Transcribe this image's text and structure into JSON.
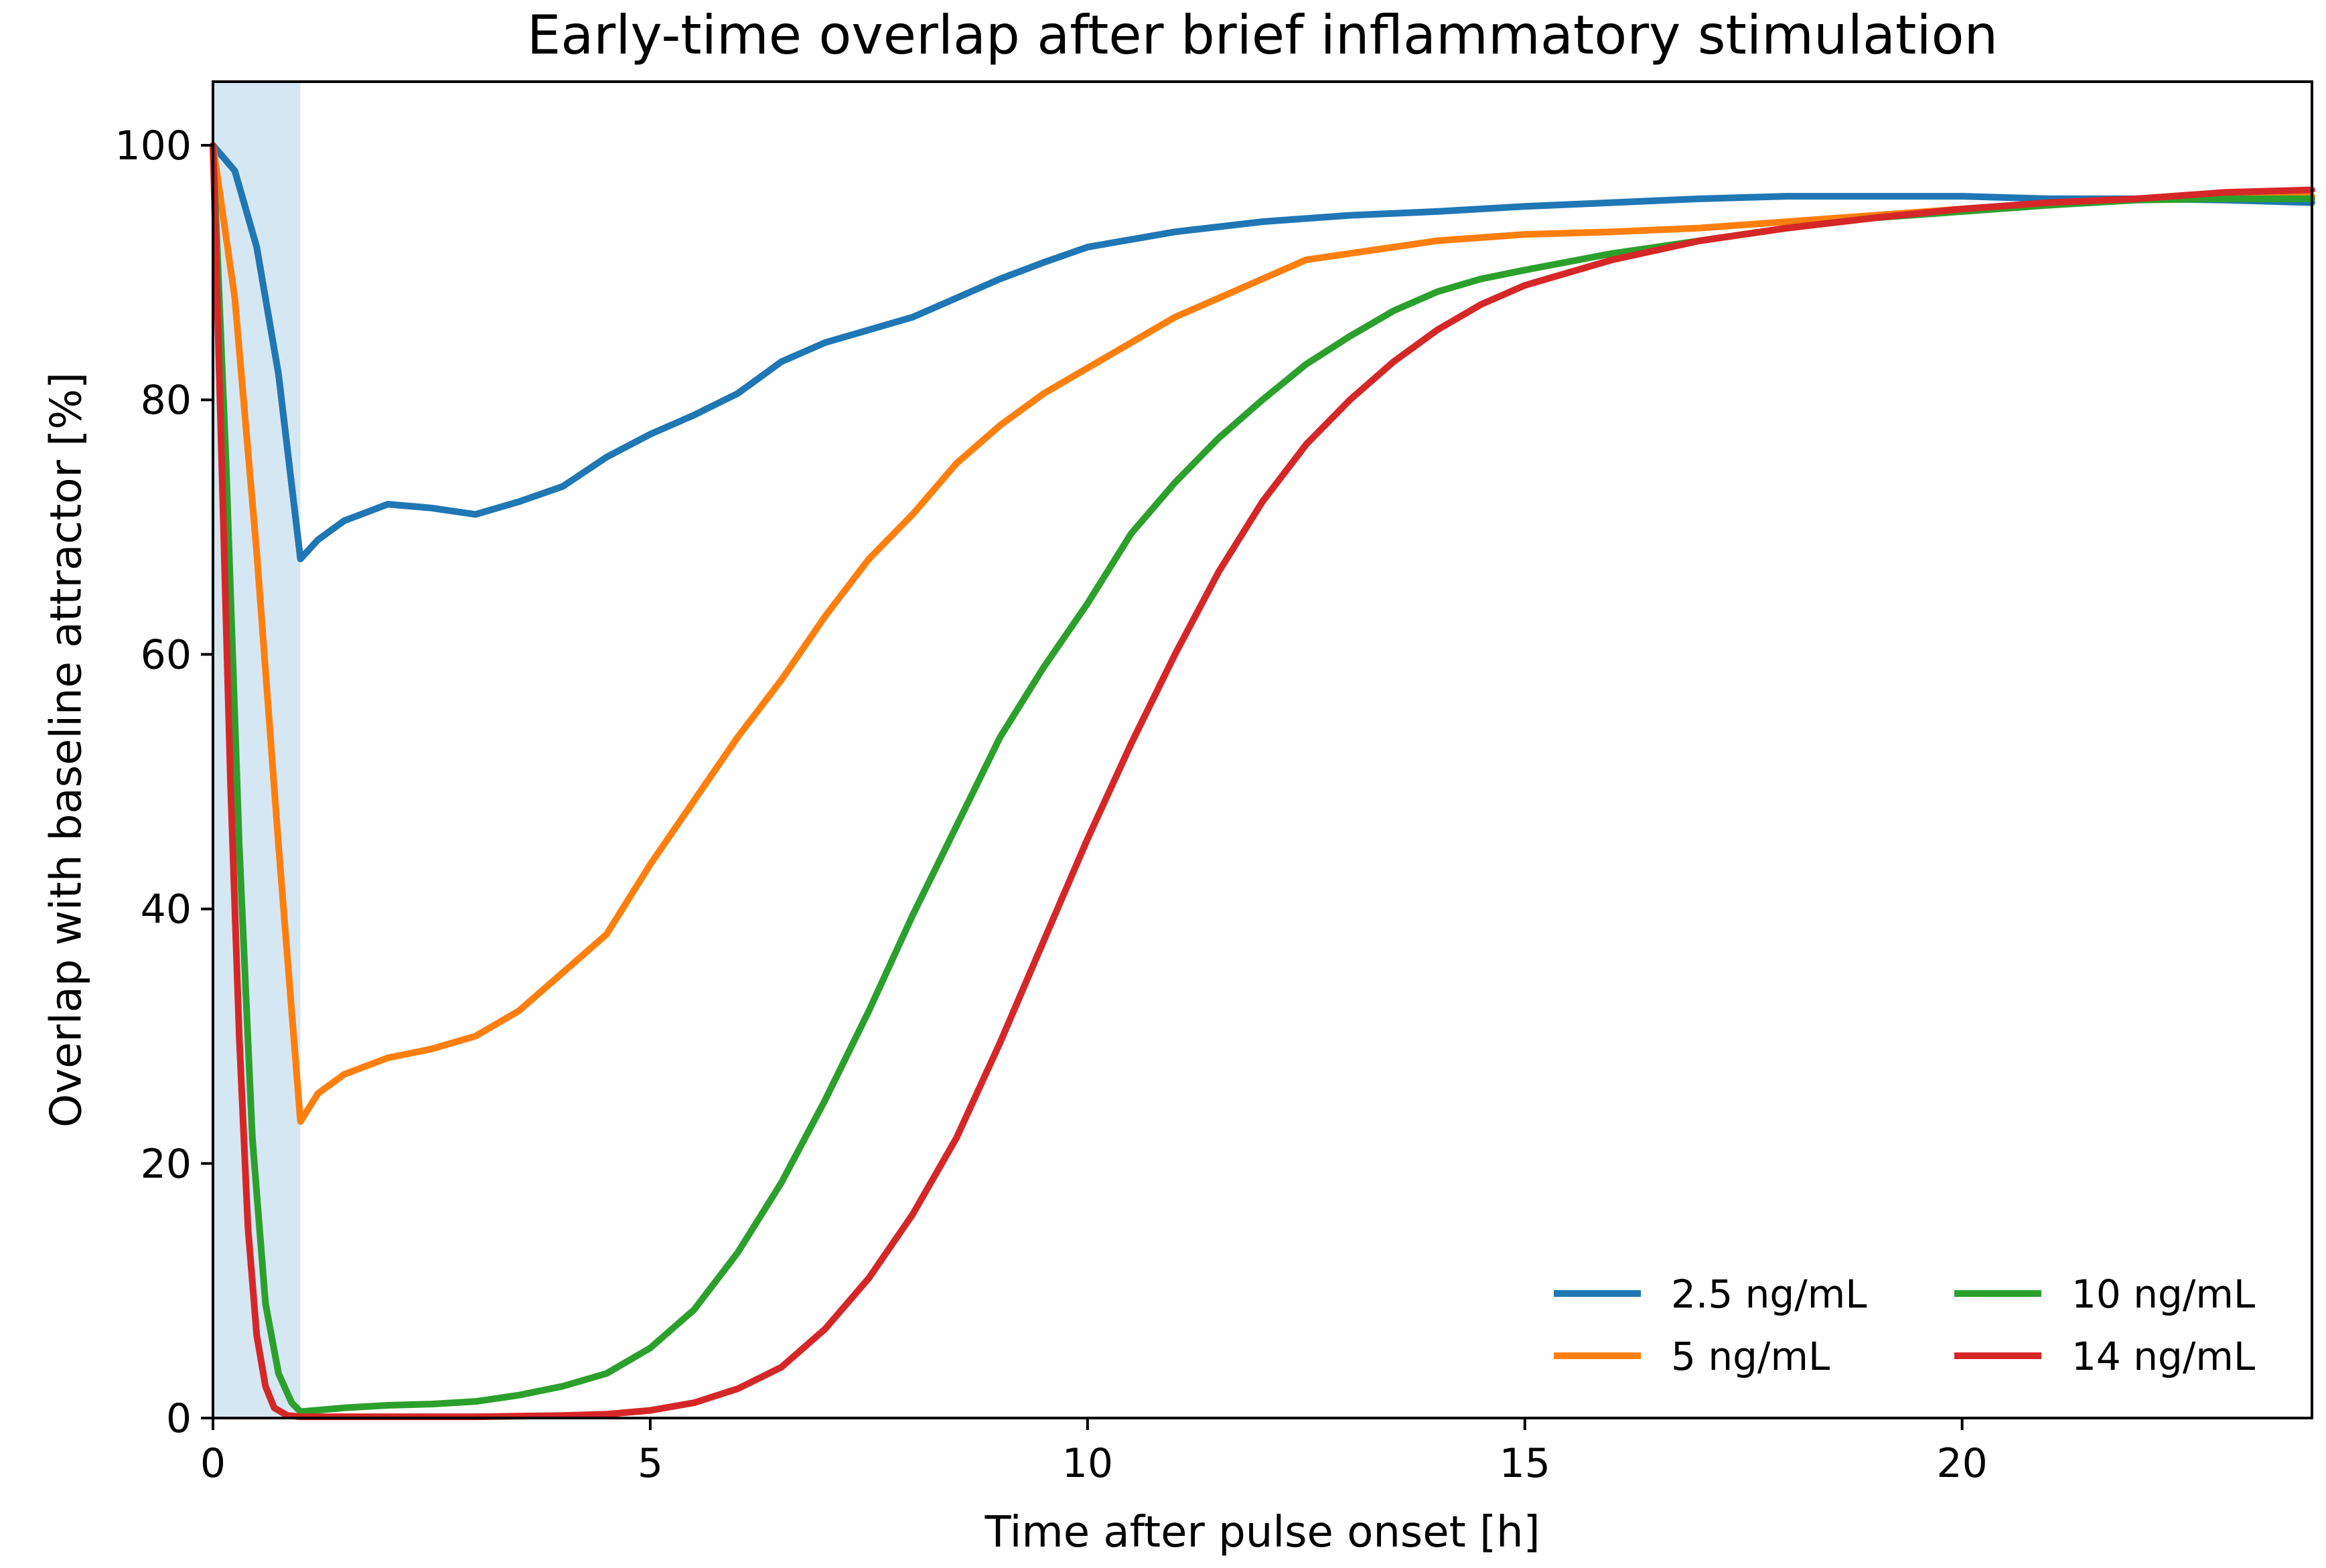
{
  "chart_data": {
    "type": "line",
    "title": "Early-time overlap after brief inflammatory stimulation",
    "xlabel": "Time after pulse onset [h]",
    "ylabel": "Overlap with baseline attractor [%]",
    "xlim": [
      0,
      24
    ],
    "ylim": [
      0,
      105
    ],
    "xticks": [
      0,
      5,
      10,
      15,
      20
    ],
    "yticks": [
      0,
      20,
      40,
      60,
      80,
      100
    ],
    "grid": false,
    "legend_position": "lower-right",
    "legend_columns": 2,
    "shaded_interval": {
      "x_start": 0,
      "x_end": 1,
      "color": "#d6e7f4"
    },
    "series": [
      {
        "name": "2.5 ng/mL",
        "color": "#1f77b4",
        "points": [
          [
            0,
            100
          ],
          [
            0.25,
            98
          ],
          [
            0.5,
            92
          ],
          [
            0.75,
            82
          ],
          [
            1.0,
            67.5
          ],
          [
            1.2,
            69
          ],
          [
            1.5,
            70.5
          ],
          [
            2.0,
            71.8
          ],
          [
            2.5,
            71.5
          ],
          [
            3.0,
            71.0
          ],
          [
            3.5,
            72.0
          ],
          [
            4.0,
            73.2
          ],
          [
            4.5,
            75.5
          ],
          [
            5.0,
            77.3
          ],
          [
            5.5,
            78.8
          ],
          [
            6.0,
            80.5
          ],
          [
            6.5,
            83.0
          ],
          [
            7.0,
            84.5
          ],
          [
            7.5,
            85.5
          ],
          [
            8.0,
            86.5
          ],
          [
            8.5,
            88.0
          ],
          [
            9.0,
            89.5
          ],
          [
            9.5,
            90.8
          ],
          [
            10.0,
            92.0
          ],
          [
            11.0,
            93.2
          ],
          [
            12.0,
            94.0
          ],
          [
            13.0,
            94.5
          ],
          [
            14.0,
            94.8
          ],
          [
            15.0,
            95.2
          ],
          [
            16.0,
            95.5
          ],
          [
            17.0,
            95.8
          ],
          [
            18.0,
            96.0
          ],
          [
            19.0,
            96.0
          ],
          [
            20.0,
            96.0
          ],
          [
            21.0,
            95.8
          ],
          [
            22.0,
            95.8
          ],
          [
            23.0,
            95.7
          ],
          [
            24.0,
            95.5
          ]
        ]
      },
      {
        "name": "5 ng/mL",
        "color": "#ff7f0e",
        "points": [
          [
            0,
            100
          ],
          [
            0.25,
            88
          ],
          [
            0.5,
            68
          ],
          [
            0.75,
            45
          ],
          [
            1.0,
            23.3
          ],
          [
            1.2,
            25.5
          ],
          [
            1.5,
            27
          ],
          [
            2.0,
            28.3
          ],
          [
            2.5,
            29.0
          ],
          [
            3.0,
            30.0
          ],
          [
            3.5,
            32.0
          ],
          [
            4.0,
            35.0
          ],
          [
            4.5,
            38.0
          ],
          [
            5.0,
            43.5
          ],
          [
            5.5,
            48.5
          ],
          [
            6.0,
            53.5
          ],
          [
            6.5,
            58.0
          ],
          [
            7.0,
            63.0
          ],
          [
            7.5,
            67.5
          ],
          [
            8.0,
            71.0
          ],
          [
            8.5,
            75.0
          ],
          [
            9.0,
            78.0
          ],
          [
            9.5,
            80.5
          ],
          [
            10.0,
            82.5
          ],
          [
            10.5,
            84.5
          ],
          [
            11.0,
            86.5
          ],
          [
            11.5,
            88.0
          ],
          [
            12.0,
            89.5
          ],
          [
            12.5,
            91.0
          ],
          [
            13.0,
            91.5
          ],
          [
            14.0,
            92.5
          ],
          [
            15.0,
            93.0
          ],
          [
            16.0,
            93.2
          ],
          [
            17.0,
            93.5
          ],
          [
            18.0,
            94.0
          ],
          [
            19.0,
            94.5
          ],
          [
            20.0,
            95.0
          ],
          [
            21.0,
            95.3
          ],
          [
            22.0,
            95.8
          ],
          [
            23.0,
            95.8
          ],
          [
            24.0,
            96.0
          ]
        ]
      },
      {
        "name": "10 ng/mL",
        "color": "#2ca02c",
        "points": [
          [
            0,
            100
          ],
          [
            0.15,
            75
          ],
          [
            0.3,
            45
          ],
          [
            0.45,
            22
          ],
          [
            0.6,
            9
          ],
          [
            0.75,
            3.5
          ],
          [
            0.9,
            1.2
          ],
          [
            1.0,
            0.5
          ],
          [
            1.5,
            0.8
          ],
          [
            2.0,
            1.0
          ],
          [
            2.5,
            1.1
          ],
          [
            3.0,
            1.3
          ],
          [
            3.5,
            1.8
          ],
          [
            4.0,
            2.5
          ],
          [
            4.5,
            3.5
          ],
          [
            5.0,
            5.5
          ],
          [
            5.5,
            8.5
          ],
          [
            6.0,
            13.0
          ],
          [
            6.5,
            18.5
          ],
          [
            7.0,
            25.0
          ],
          [
            7.5,
            32.0
          ],
          [
            8.0,
            39.5
          ],
          [
            8.5,
            46.5
          ],
          [
            9.0,
            53.5
          ],
          [
            9.5,
            59.0
          ],
          [
            10.0,
            64.0
          ],
          [
            10.5,
            69.5
          ],
          [
            11.0,
            73.5
          ],
          [
            11.5,
            77.0
          ],
          [
            12.0,
            80.0
          ],
          [
            12.5,
            82.8
          ],
          [
            13.0,
            85.0
          ],
          [
            13.5,
            87.0
          ],
          [
            14.0,
            88.5
          ],
          [
            14.5,
            89.5
          ],
          [
            15.0,
            90.2
          ],
          [
            16.0,
            91.5
          ],
          [
            17.0,
            92.5
          ],
          [
            18.0,
            93.5
          ],
          [
            19.0,
            94.3
          ],
          [
            20.0,
            94.8
          ],
          [
            21.0,
            95.3
          ],
          [
            22.0,
            95.7
          ],
          [
            23.0,
            95.8
          ],
          [
            24.0,
            95.8
          ]
        ]
      },
      {
        "name": "14 ng/mL",
        "color": "#d62728",
        "points": [
          [
            0,
            100
          ],
          [
            0.1,
            75
          ],
          [
            0.2,
            50
          ],
          [
            0.3,
            30
          ],
          [
            0.4,
            15
          ],
          [
            0.5,
            6.5
          ],
          [
            0.6,
            2.5
          ],
          [
            0.7,
            0.8
          ],
          [
            0.85,
            0.2
          ],
          [
            1.0,
            0.1
          ],
          [
            2.0,
            0.1
          ],
          [
            3.0,
            0.1
          ],
          [
            4.0,
            0.2
          ],
          [
            4.5,
            0.3
          ],
          [
            5.0,
            0.6
          ],
          [
            5.5,
            1.2
          ],
          [
            6.0,
            2.3
          ],
          [
            6.5,
            4.0
          ],
          [
            7.0,
            7.0
          ],
          [
            7.5,
            11.0
          ],
          [
            8.0,
            16.0
          ],
          [
            8.5,
            22.0
          ],
          [
            9.0,
            29.5
          ],
          [
            9.5,
            37.5
          ],
          [
            10.0,
            45.5
          ],
          [
            10.5,
            53.0
          ],
          [
            11.0,
            60.0
          ],
          [
            11.5,
            66.5
          ],
          [
            12.0,
            72.0
          ],
          [
            12.5,
            76.5
          ],
          [
            13.0,
            80.0
          ],
          [
            13.5,
            83.0
          ],
          [
            14.0,
            85.5
          ],
          [
            14.5,
            87.5
          ],
          [
            15.0,
            89.0
          ],
          [
            16.0,
            91.0
          ],
          [
            17.0,
            92.5
          ],
          [
            18.0,
            93.5
          ],
          [
            19.0,
            94.3
          ],
          [
            20.0,
            95.0
          ],
          [
            21.0,
            95.5
          ],
          [
            22.0,
            95.8
          ],
          [
            23.0,
            96.3
          ],
          [
            24.0,
            96.5
          ]
        ]
      }
    ]
  }
}
